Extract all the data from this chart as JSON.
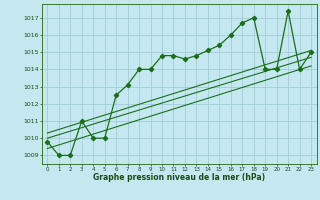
{
  "xlabel": "Graphe pression niveau de la mer (hPa)",
  "bg_color": "#c5e8f0",
  "grid_color": "#a0ccd8",
  "line_color": "#1a6e1a",
  "ylim": [
    1008.5,
    1017.8
  ],
  "yticks": [
    1009,
    1010,
    1011,
    1012,
    1013,
    1014,
    1015,
    1016,
    1017
  ],
  "xlim": [
    -0.5,
    23.5
  ],
  "xticks": [
    0,
    1,
    2,
    3,
    4,
    5,
    6,
    7,
    8,
    9,
    10,
    11,
    12,
    13,
    14,
    15,
    16,
    17,
    18,
    19,
    20,
    21,
    22,
    23
  ],
  "series1_x": [
    0,
    1,
    2,
    3,
    4,
    5,
    6,
    7,
    8,
    9,
    10,
    11,
    12,
    13,
    14,
    15,
    16,
    17,
    18,
    19,
    20,
    21,
    22,
    23
  ],
  "series1_y": [
    1009.8,
    1009.0,
    1009.0,
    1011.0,
    1010.0,
    1010.0,
    1012.5,
    1013.1,
    1014.0,
    1014.0,
    1014.8,
    1014.8,
    1014.6,
    1014.8,
    1015.1,
    1015.4,
    1016.0,
    1016.7,
    1017.0,
    1014.0,
    1014.0,
    1017.4,
    1014.0,
    1015.0
  ],
  "trend1_x": [
    0,
    23
  ],
  "trend1_y": [
    1009.4,
    1014.2
  ],
  "trend2_x": [
    0,
    23
  ],
  "trend2_y": [
    1010.0,
    1014.7
  ],
  "trend3_x": [
    0,
    23
  ],
  "trend3_y": [
    1010.3,
    1015.1
  ]
}
